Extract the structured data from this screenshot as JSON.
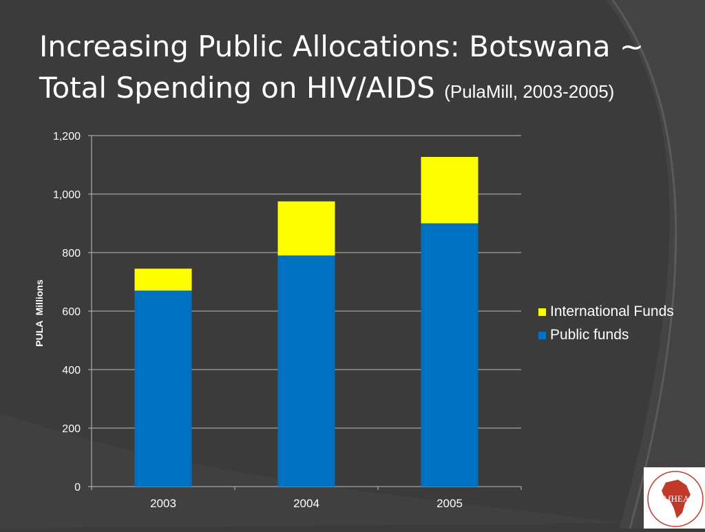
{
  "slide": {
    "title_main": "Increasing Public Allocations: Botswana ~ Total Spending on HIV/AIDS",
    "title_sub": "(PulaMill, 2003-2005)",
    "logo_text": "AfHEA"
  },
  "colors": {
    "background": "#3b3b3b",
    "public": "#0070c0",
    "international": "#ffff00",
    "text": "#ffffff"
  },
  "chart_data": {
    "type": "bar",
    "stacked": true,
    "categories": [
      "2003",
      "2004",
      "2005"
    ],
    "series": [
      {
        "name": "Public funds",
        "values": [
          670,
          790,
          900
        ],
        "color": "#0070c0"
      },
      {
        "name": "International Funds",
        "values": [
          75,
          185,
          227
        ],
        "color": "#ffff00"
      }
    ],
    "ylabel": "PULA  Millions",
    "xlabel": "",
    "ylim": [
      0,
      1200
    ],
    "yticks": [
      0,
      200,
      400,
      600,
      800,
      1000,
      1200
    ],
    "ytick_labels": [
      "0",
      "200",
      "400",
      "600",
      "800",
      "1,000",
      "1,200"
    ],
    "grid": true,
    "legend_position": "right",
    "legend": [
      "International Funds",
      "Public funds"
    ]
  }
}
